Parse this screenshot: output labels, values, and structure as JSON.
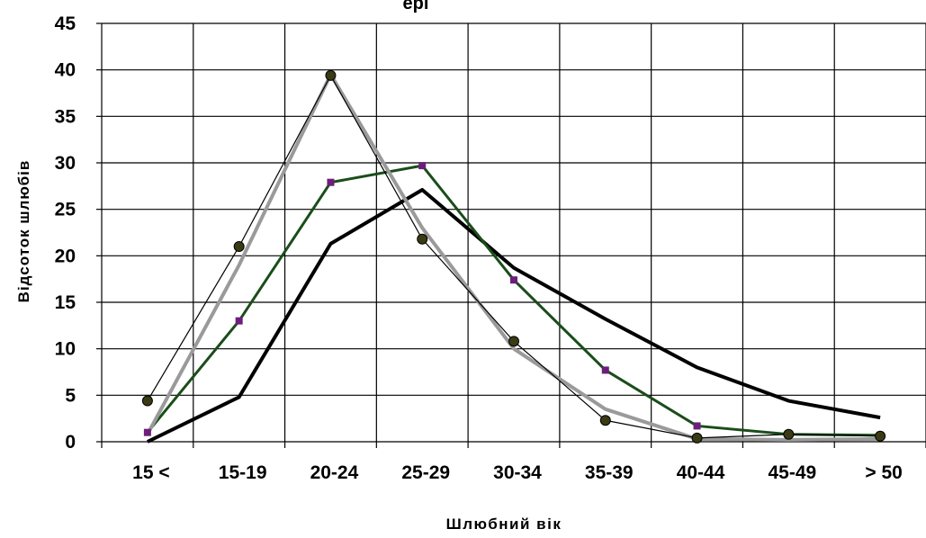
{
  "chart_data": {
    "type": "line",
    "title": "",
    "title_partial": "ерi",
    "xlabel": "Шлюбний вік",
    "ylabel": "Відсоток шлюбів",
    "categories": [
      "15 <",
      "15-19",
      "20-24",
      "25-29",
      "30-34",
      "35-39",
      "40-44",
      "45-49",
      "> 50"
    ],
    "ylim": [
      0,
      45
    ],
    "yticks": [
      0,
      5,
      10,
      15,
      20,
      25,
      30,
      35,
      40,
      45
    ],
    "grid": true,
    "legend": "none",
    "series": [
      {
        "color": "#000000",
        "marker": "none",
        "width": "thick",
        "values": [
          0.0,
          4.8,
          21.3,
          27.1,
          18.7,
          13.2,
          8.0,
          4.4,
          2.6
        ]
      },
      {
        "color": "#1a4d1a",
        "marker": "square",
        "marker_color": "#6b1f7a",
        "width": "medium",
        "values": [
          1.0,
          13.0,
          27.9,
          29.7,
          17.4,
          7.7,
          1.7,
          0.8,
          0.7
        ]
      },
      {
        "color": "#9a9a9a",
        "marker": "none",
        "width": "thick",
        "values": [
          0.8,
          19.0,
          39.5,
          23.0,
          10.0,
          3.5,
          0.3,
          0.2,
          0.3
        ]
      },
      {
        "color": "#000000",
        "marker": "circle",
        "marker_color": "#3a3a14",
        "width": "thin",
        "values": [
          4.4,
          21.0,
          39.4,
          21.8,
          10.8,
          2.3,
          0.4,
          0.8,
          0.6
        ]
      }
    ]
  }
}
